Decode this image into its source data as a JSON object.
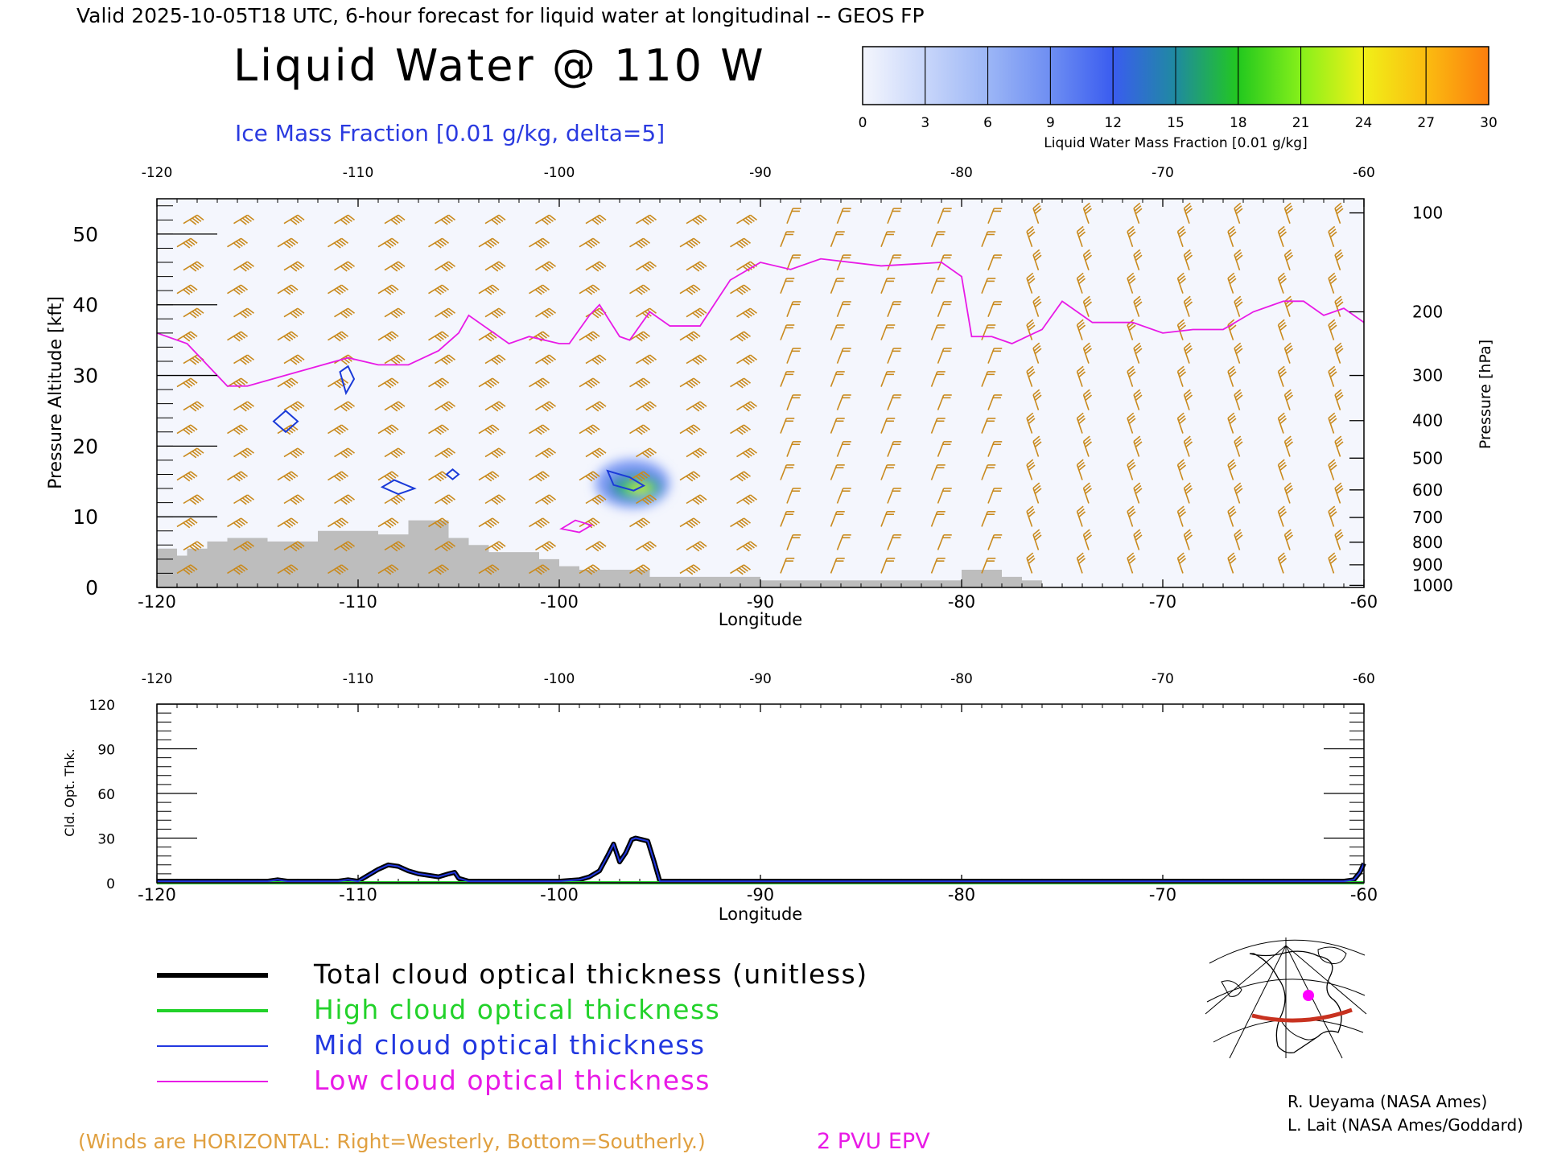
{
  "header": {
    "top_line": "Valid 2025-10-05T18 UTC, 6-hour forecast for liquid water at longitudinal -- GEOS FP",
    "title": "Liquid Water @ 110 W",
    "subtitle": "Ice Mass Fraction [0.01 g/kg, delta=5]"
  },
  "colorbar": {
    "ticks": [
      "0",
      "3",
      "6",
      "9",
      "12",
      "15",
      "18",
      "21",
      "24",
      "27",
      "30"
    ],
    "label": "Liquid Water Mass Fraction [0.01 g/kg]",
    "colors": [
      "#f4f6fd",
      "#c8d6fa",
      "#9cb6f6",
      "#6e8ef2",
      "#3a5cf0",
      "#1f8aa0",
      "#22c81e",
      "#86f01a",
      "#f0f018",
      "#fbbc10",
      "#fb7e0e"
    ],
    "end_color": "#f8240a"
  },
  "colors": {
    "ice_contour": "#1a3ad8",
    "wind_barb": "#c98a1e",
    "epv_line": "#e81ae6",
    "terrain": "#bdbdbd",
    "background_field": "#f4f6fd"
  },
  "footer": {
    "winds_note": "(Winds are HORIZONTAL: Right=Westerly, Bottom=Southerly.)",
    "epv_label": "2 PVU EPV",
    "credit1": "R. Ueyama (NASA Ames)",
    "credit2": "L. Lait (NASA Ames/Goddard)"
  },
  "legend": [
    {
      "label": "Total cloud optical thickness (unitless)",
      "color": "#000000"
    },
    {
      "label": "High cloud optical thickness",
      "color": "#22d22a"
    },
    {
      "label": "Mid cloud optical thickness",
      "color": "#2238e0"
    },
    {
      "label": "Low cloud optical thickness",
      "color": "#e81ae6"
    }
  ],
  "chart_data": [
    {
      "type": "heatmap",
      "title": "Liquid Water @ 110 W",
      "xlabel": "Longitude",
      "ylabel": "Pressure Altitude [kft]",
      "y2label": "Pressure [hPa]",
      "xlim": [
        -120,
        -60
      ],
      "ylim": [
        0,
        55
      ],
      "xticks": [
        "-120",
        "-110",
        "-100",
        "-90",
        "-80",
        "-70",
        "-60"
      ],
      "yticks": [
        "0",
        "10",
        "20",
        "30",
        "40",
        "50"
      ],
      "pressure_ticks": [
        "100",
        "200",
        "300",
        "400",
        "500",
        "600",
        "700",
        "800",
        "900",
        "1000"
      ],
      "pressure_tick_kft": [
        53.0,
        39.0,
        30.0,
        23.6,
        18.3,
        13.8,
        9.9,
        6.4,
        3.2,
        0.3
      ],
      "liquid_water_blobs": [
        {
          "lon": -96.2,
          "alt_kft": 14.0,
          "peak": 18
        }
      ],
      "ice_contours": [
        {
          "lon": [
            -108.8,
            -108.2,
            -107.2,
            -108.0,
            -108.8
          ],
          "alt_kft": [
            14.2,
            15.2,
            14.0,
            13.2,
            14.2
          ]
        },
        {
          "lon": [
            -114.2,
            -113.6,
            -113.0,
            -113.6,
            -114.2
          ],
          "alt_kft": [
            23.5,
            25.0,
            23.5,
            22.0,
            23.5
          ]
        },
        {
          "lon": [
            -110.9,
            -110.5,
            -110.2,
            -110.6,
            -110.9
          ],
          "alt_kft": [
            30.5,
            31.3,
            29.5,
            27.5,
            30.5
          ]
        },
        {
          "lon": [
            -105.6,
            -105.3,
            -105.0,
            -105.3,
            -105.6
          ],
          "alt_kft": [
            16.0,
            16.7,
            16.0,
            15.3,
            16.0
          ]
        },
        {
          "lon": [
            -97.6,
            -96.5,
            -95.8,
            -96.3,
            -97.3,
            -97.6
          ],
          "alt_kft": [
            16.5,
            15.6,
            14.4,
            13.7,
            14.5,
            16.5
          ]
        }
      ],
      "epv_2pvu_line": {
        "lon": [
          -120,
          -118.5,
          -116.5,
          -115.5,
          -113,
          -110.5,
          -109,
          -107.5,
          -106,
          -105,
          -104.5,
          -102.5,
          -101.5,
          -100,
          -99.5,
          -98.5,
          -98,
          -97,
          -96.5,
          -95.5,
          -94.5,
          -93,
          -91.5,
          -90,
          -88.5,
          -87,
          -84,
          -81,
          -80,
          -79.5,
          -78.5,
          -77.5,
          -76,
          -75,
          -73.5,
          -71.5,
          -70,
          -68.5,
          -67,
          -65.5,
          -64,
          -63,
          -62,
          -61,
          -60
        ],
        "alt_kft": [
          36,
          34.5,
          28.5,
          28.5,
          30.5,
          32.5,
          31.5,
          31.5,
          33.5,
          36,
          38.5,
          34.5,
          35.5,
          34.5,
          34.5,
          38.5,
          40,
          35.5,
          35,
          39,
          37,
          37,
          43.5,
          46,
          45,
          46.5,
          45.5,
          46,
          44,
          35.5,
          35.5,
          34.5,
          36.5,
          40.5,
          37.5,
          37.5,
          36,
          36.5,
          36.5,
          39,
          40.5,
          40.5,
          38.5,
          39.5,
          37.5
        ]
      },
      "terrain_kft": {
        "lon": [
          -120,
          -119,
          -118.5,
          -117.5,
          -116.5,
          -115.5,
          -114.5,
          -113,
          -112,
          -111,
          -110,
          -109,
          -107.5,
          -106.5,
          -105.5,
          -104.5,
          -103.5,
          -102,
          -101,
          -100,
          -99,
          -97.5,
          -95.5,
          -94,
          -90,
          -85,
          -82.5,
          -80,
          -78,
          -77,
          -76,
          -60
        ],
        "alt_kft": [
          5.5,
          4.5,
          5.5,
          6.5,
          7,
          7,
          6.5,
          6.5,
          8,
          8,
          8,
          7.5,
          9.5,
          9.5,
          7,
          6,
          5,
          5,
          4,
          3,
          2.5,
          2.5,
          1.5,
          1.5,
          1,
          1,
          1,
          2.5,
          1.5,
          1,
          0,
          0
        ]
      },
      "wind_barbs_present": true
    },
    {
      "type": "line",
      "xlabel": "Longitude",
      "ylabel": "Cld. Opt. Thk.",
      "xlim": [
        -120,
        -60
      ],
      "ylim": [
        0,
        120
      ],
      "xticks": [
        "-120",
        "-110",
        "-100",
        "-90",
        "-80",
        "-70",
        "-60"
      ],
      "yticks": [
        "0",
        "30",
        "60",
        "90",
        "120"
      ],
      "x": [
        -120,
        -118,
        -116,
        -114.5,
        -114,
        -113.5,
        -112,
        -111,
        -110.5,
        -110,
        -109.5,
        -109,
        -108.5,
        -108,
        -107.5,
        -107,
        -106.5,
        -106,
        -105.5,
        -105.2,
        -105,
        -104.5,
        -101,
        -100,
        -99,
        -98.5,
        -98,
        -97.6,
        -97.3,
        -97,
        -96.7,
        -96.4,
        -96.2,
        -95.9,
        -95.6,
        -95.3,
        -95,
        -94.5,
        -90,
        -80,
        -70,
        -62.5,
        -61,
        -60.5,
        -60.2,
        -60
      ],
      "series": [
        {
          "name": "Total cloud optical thickness (unitless)",
          "values": [
            1,
            1,
            1,
            1,
            2,
            1,
            1,
            1,
            2,
            1,
            5,
            9,
            12,
            11,
            8,
            6,
            5,
            4,
            6,
            7,
            3,
            1,
            1,
            1,
            2,
            4,
            8,
            18,
            26,
            14,
            20,
            29,
            30,
            29,
            28,
            15,
            1,
            1,
            1,
            1,
            1,
            1,
            1,
            2,
            7,
            13
          ]
        },
        {
          "name": "High cloud optical thickness",
          "values": [
            0,
            0,
            0,
            0,
            0,
            0,
            0,
            0,
            0,
            0,
            0,
            0,
            0,
            0,
            0,
            0,
            0,
            0,
            0,
            0,
            0,
            0,
            0,
            0,
            0,
            0,
            0,
            0,
            0,
            0,
            0,
            0,
            0,
            0,
            0,
            0,
            0,
            0,
            0,
            0,
            0,
            0,
            0,
            0,
            0,
            0
          ]
        },
        {
          "name": "Mid cloud optical thickness",
          "values": [
            1,
            1,
            1,
            1,
            2,
            1,
            1,
            1,
            2,
            1,
            5,
            9,
            12,
            11,
            8,
            6,
            5,
            4,
            6,
            7,
            3,
            1,
            1,
            1,
            2,
            4,
            8,
            18,
            26,
            14,
            20,
            29,
            30,
            29,
            28,
            15,
            1,
            1,
            1,
            1,
            1,
            1,
            1,
            2,
            7,
            13
          ]
        },
        {
          "name": "Low cloud optical thickness",
          "values": [
            0,
            0,
            0,
            0,
            0,
            0,
            0,
            0,
            0,
            0,
            0,
            0,
            0,
            0,
            0,
            0,
            0,
            0,
            0,
            0,
            0,
            0,
            0,
            0,
            0,
            0,
            0,
            0,
            0,
            0,
            0,
            0,
            0,
            0,
            0,
            0,
            0,
            0,
            0,
            0,
            0,
            0,
            0,
            0,
            0,
            0
          ]
        }
      ]
    }
  ],
  "inset_map": {
    "marker_color": "#ff00ff",
    "track_color": "#c83220"
  }
}
